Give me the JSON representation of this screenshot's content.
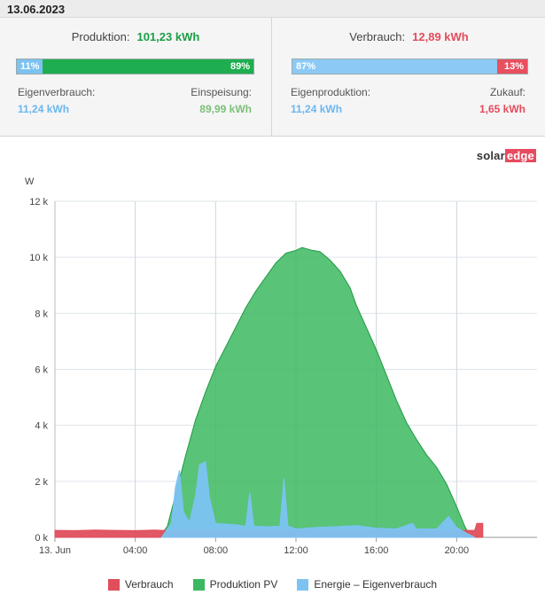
{
  "date": "13.06.2023",
  "production": {
    "label": "Produktion:",
    "value": "101,23 kWh",
    "bar": [
      {
        "label": "11%",
        "fraction": 0.11,
        "color": "#7cc3f2"
      },
      {
        "label": "89%",
        "fraction": 0.89,
        "color": "#1fae4f"
      }
    ],
    "left": {
      "label": "Eigenverbrauch:",
      "value": "11,24 kWh"
    },
    "right": {
      "label": "Einspeisung:",
      "value": "89,99 kWh"
    }
  },
  "consumption": {
    "label": "Verbrauch:",
    "value": "12,89 kWh",
    "bar": [
      {
        "label": "87%",
        "fraction": 0.87,
        "color": "#8ccaf5"
      },
      {
        "label": "13%",
        "fraction": 0.13,
        "color": "#e8505f"
      }
    ],
    "left": {
      "label": "Eigenproduktion:",
      "value": "11,24 kWh"
    },
    "right": {
      "label": "Zukauf:",
      "value": "1,65 kWh"
    }
  },
  "colors": {
    "production_value": "#1a9e45",
    "consumption_value": "#e64b5c",
    "blue_value": "#6bb6ee",
    "green_value": "#7cc07a",
    "red_value": "#e64b5c"
  },
  "logo": {
    "part1": "solar",
    "part2": "edge"
  },
  "chart_data": {
    "type": "area",
    "ylabel": "W",
    "ylim": [
      0,
      12000
    ],
    "y_ticks": [
      0,
      2000,
      4000,
      6000,
      8000,
      10000,
      12000
    ],
    "y_tick_labels": [
      "0 k",
      "2 k",
      "4 k",
      "6 k",
      "8 k",
      "10 k",
      "12 k"
    ],
    "xlim": [
      0,
      24
    ],
    "x_ticks": [
      0,
      4,
      8,
      12,
      16,
      20
    ],
    "x_tick_labels": [
      "13. Jun",
      "04:00",
      "08:00",
      "12:00",
      "16:00",
      "20:00"
    ],
    "series": [
      {
        "name": "Produktion PV",
        "color": "#3cb860",
        "points": [
          [
            5.2,
            0
          ],
          [
            5.6,
            400
          ],
          [
            6.0,
            1500
          ],
          [
            6.5,
            2900
          ],
          [
            7.0,
            4200
          ],
          [
            7.5,
            5200
          ],
          [
            8.0,
            6100
          ],
          [
            8.5,
            6800
          ],
          [
            9.0,
            7500
          ],
          [
            9.5,
            8200
          ],
          [
            10.0,
            8800
          ],
          [
            10.5,
            9300
          ],
          [
            11.0,
            9800
          ],
          [
            11.5,
            10150
          ],
          [
            12.0,
            10250
          ],
          [
            12.3,
            10350
          ],
          [
            12.8,
            10250
          ],
          [
            13.2,
            10200
          ],
          [
            13.7,
            9900
          ],
          [
            14.2,
            9500
          ],
          [
            14.7,
            8900
          ],
          [
            15.0,
            8300
          ],
          [
            15.5,
            7500
          ],
          [
            16.0,
            6700
          ],
          [
            16.5,
            5800
          ],
          [
            17.0,
            4900
          ],
          [
            17.5,
            4100
          ],
          [
            18.0,
            3500
          ],
          [
            18.5,
            2950
          ],
          [
            19.0,
            2500
          ],
          [
            19.5,
            1900
          ],
          [
            20.0,
            1100
          ],
          [
            20.4,
            400
          ],
          [
            20.7,
            0
          ]
        ]
      },
      {
        "name": "Energie - Eigenverbrauch",
        "color": "#7cc3f2",
        "points": [
          [
            5.3,
            0
          ],
          [
            5.5,
            200
          ],
          [
            5.8,
            500
          ],
          [
            6.0,
            1800
          ],
          [
            6.2,
            2400
          ],
          [
            6.4,
            900
          ],
          [
            6.7,
            550
          ],
          [
            7.0,
            1500
          ],
          [
            7.2,
            2600
          ],
          [
            7.5,
            2700
          ],
          [
            7.7,
            1400
          ],
          [
            8.0,
            500
          ],
          [
            9.0,
            450
          ],
          [
            9.5,
            400
          ],
          [
            9.7,
            1600
          ],
          [
            9.9,
            400
          ],
          [
            10.5,
            380
          ],
          [
            11.2,
            400
          ],
          [
            11.4,
            2100
          ],
          [
            11.6,
            400
          ],
          [
            12.0,
            300
          ],
          [
            13.0,
            350
          ],
          [
            14.0,
            380
          ],
          [
            15.0,
            420
          ],
          [
            16.0,
            330
          ],
          [
            17.0,
            300
          ],
          [
            17.8,
            500
          ],
          [
            18.0,
            300
          ],
          [
            19.0,
            300
          ],
          [
            19.6,
            750
          ],
          [
            20.0,
            350
          ],
          [
            20.5,
            150
          ],
          [
            20.9,
            0
          ]
        ]
      },
      {
        "name": "Verbrauch",
        "color": "#e04e5c",
        "points": [
          [
            0,
            250
          ],
          [
            1,
            240
          ],
          [
            2,
            260
          ],
          [
            3,
            250
          ],
          [
            4,
            240
          ],
          [
            5,
            260
          ],
          [
            5.3,
            250
          ],
          [
            20.9,
            250
          ],
          [
            21.0,
            500
          ],
          [
            21.3,
            500
          ],
          [
            21.3,
            0
          ]
        ]
      }
    ],
    "legend": [
      "Verbrauch",
      "Produktion PV",
      "Energie – Eigenverbrauch"
    ],
    "legend_placement": "bottom"
  }
}
